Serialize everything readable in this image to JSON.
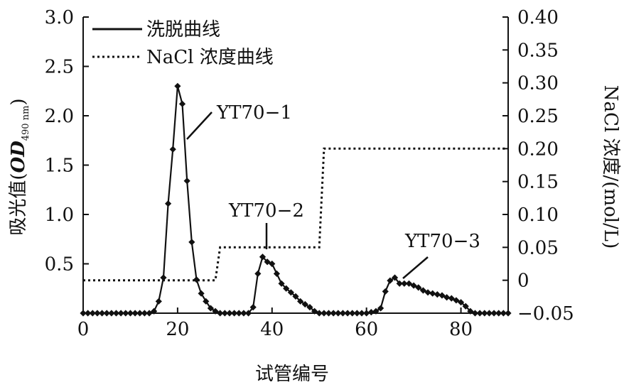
{
  "chart_data": {
    "type": "line",
    "xlabel": "试管编号",
    "ylabel_left_main": "吸光值(",
    "ylabel_left_od": "OD",
    "ylabel_left_sub": "490 nm",
    "ylabel_left_close": ")",
    "ylabel_right": "NaCl 浓度/(mol/L)",
    "xlim": [
      0,
      90
    ],
    "ylim_left": [
      0,
      3.0
    ],
    "ylim_right": [
      -0.05,
      0.4
    ],
    "x_ticks": [
      0,
      20,
      40,
      60,
      80
    ],
    "y_left_ticks": [
      0.5,
      1.0,
      1.5,
      2.0,
      2.5,
      3.0
    ],
    "y_right_ticks": [
      -0.05,
      0,
      0.05,
      0.1,
      0.15,
      0.2,
      0.25,
      0.3,
      0.35,
      0.4
    ],
    "x_tick_labels": [
      "0",
      "20",
      "40",
      "60",
      "80"
    ],
    "y_left_tick_labels": [
      "0.5",
      "1.0",
      "1.5",
      "2.0",
      "2.5",
      "3.0"
    ],
    "y_right_tick_labels": [
      "−0.05",
      "0",
      "0.05",
      "0.10",
      "0.15",
      "0.20",
      "0.25",
      "0.30",
      "0.35",
      "0.40"
    ],
    "legend": [
      {
        "label": "洗脱曲线",
        "style": "solid"
      },
      {
        "label": "NaCl 浓度曲线",
        "style": "dotted"
      }
    ],
    "series": [
      {
        "name": "洗脱曲线",
        "axis": "left",
        "style": "solid-with-diamond-markers",
        "x": [
          0,
          1,
          2,
          3,
          4,
          5,
          6,
          7,
          8,
          9,
          10,
          11,
          12,
          13,
          14,
          15,
          16,
          17,
          18,
          19,
          20,
          21,
          22,
          23,
          24,
          25,
          26,
          27,
          28,
          29,
          30,
          31,
          32,
          33,
          34,
          35,
          36,
          37,
          38,
          39,
          40,
          41,
          42,
          43,
          44,
          45,
          46,
          47,
          48,
          49,
          50,
          51,
          52,
          53,
          54,
          55,
          56,
          57,
          58,
          59,
          60,
          61,
          62,
          63,
          64,
          65,
          66,
          67,
          68,
          69,
          70,
          71,
          72,
          73,
          74,
          75,
          76,
          77,
          78,
          79,
          80,
          81,
          82,
          83,
          84,
          85,
          86,
          87,
          88,
          89,
          90
        ],
        "y": [
          0,
          0,
          0,
          0,
          0,
          0,
          0,
          0,
          0,
          0,
          0,
          0,
          0,
          0,
          0,
          0.02,
          0.12,
          0.36,
          1.11,
          1.66,
          2.3,
          2.12,
          1.34,
          0.72,
          0.34,
          0.2,
          0.12,
          0.05,
          0.02,
          0,
          0,
          0,
          0,
          0,
          0,
          0,
          0.06,
          0.4,
          0.57,
          0.52,
          0.5,
          0.4,
          0.3,
          0.25,
          0.21,
          0.17,
          0.12,
          0.09,
          0.06,
          0.02,
          0,
          0,
          0,
          0,
          0,
          0,
          0,
          0,
          0,
          0,
          0,
          0.01,
          0.02,
          0.05,
          0.22,
          0.33,
          0.36,
          0.3,
          0.3,
          0.3,
          0.28,
          0.26,
          0.23,
          0.21,
          0.2,
          0.19,
          0.18,
          0.16,
          0.15,
          0.13,
          0.11,
          0.07,
          0.02,
          0,
          0,
          0,
          0,
          0,
          0,
          0,
          0
        ]
      },
      {
        "name": "NaCl 浓度曲线",
        "axis": "right",
        "style": "dotted",
        "x": [
          0,
          28,
          29,
          50,
          51,
          90
        ],
        "y": [
          0,
          0,
          0.05,
          0.05,
          0.2,
          0.2
        ]
      }
    ],
    "annotations": [
      {
        "text": "YT70−1",
        "x": 22,
        "y": 2.3
      },
      {
        "text": "YT70−2",
        "x": 39,
        "y": 0.9
      },
      {
        "text": "YT70−3",
        "x": 67,
        "y": 0.6
      }
    ]
  }
}
